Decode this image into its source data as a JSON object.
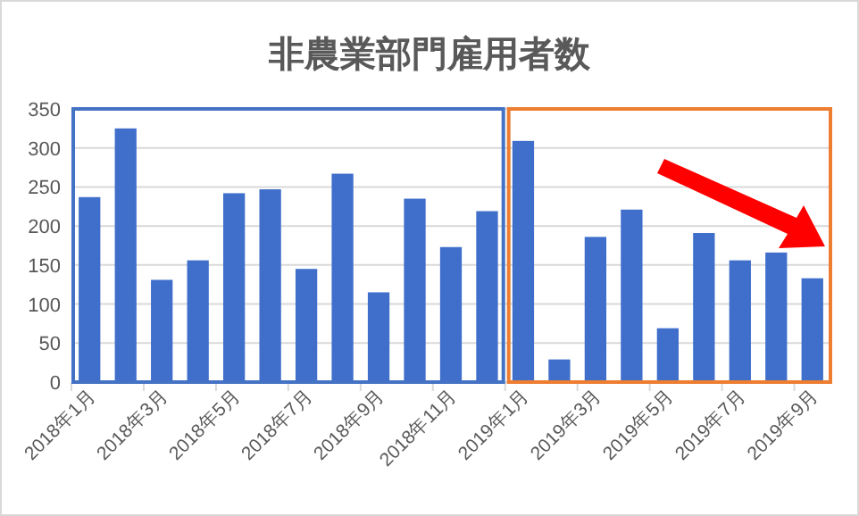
{
  "chart_data": {
    "type": "bar",
    "title": "非農業部門雇用者数",
    "categories": [
      "2018年1月",
      null,
      "2018年3月",
      null,
      "2018年5月",
      null,
      "2018年7月",
      null,
      "2018年9月",
      null,
      "2018年11月",
      null,
      "2019年1月",
      null,
      "2019年3月",
      null,
      "2019年5月",
      null,
      "2019年7月",
      null,
      "2019年9月"
    ],
    "values": [
      237,
      325,
      131,
      156,
      242,
      247,
      145,
      267,
      115,
      235,
      173,
      219,
      309,
      29,
      186,
      221,
      69,
      191,
      156,
      166,
      133
    ],
    "color": "#3f6fcb",
    "ylim": [
      0,
      350
    ],
    "yticks": [
      0,
      50,
      100,
      150,
      200,
      250,
      300,
      350
    ],
    "grid": "y"
  }
}
